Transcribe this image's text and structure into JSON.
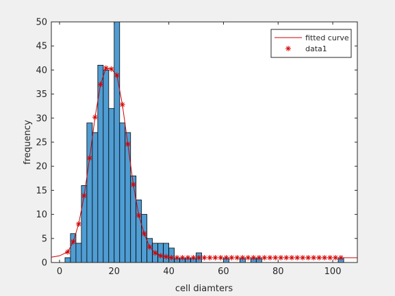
{
  "chart_data": {
    "type": "bar",
    "xlabel": "cell diamters",
    "ylabel": "frequency",
    "xlim": [
      -3,
      109
    ],
    "ylim": [
      0,
      50
    ],
    "xticks": [
      0,
      20,
      40,
      60,
      80,
      100
    ],
    "yticks": [
      0,
      5,
      10,
      15,
      20,
      25,
      30,
      35,
      40,
      45,
      50
    ],
    "grid": false,
    "legend_position": "top-right",
    "bin_width": 2,
    "histogram": {
      "bins": [
        {
          "x": 3,
          "count": 1
        },
        {
          "x": 5,
          "count": 6
        },
        {
          "x": 7,
          "count": 4
        },
        {
          "x": 9,
          "count": 16
        },
        {
          "x": 11,
          "count": 29
        },
        {
          "x": 13,
          "count": 27
        },
        {
          "x": 15,
          "count": 41
        },
        {
          "x": 17,
          "count": 40
        },
        {
          "x": 19,
          "count": 32
        },
        {
          "x": 21,
          "count": 50
        },
        {
          "x": 23,
          "count": 29
        },
        {
          "x": 25,
          "count": 27
        },
        {
          "x": 27,
          "count": 18
        },
        {
          "x": 29,
          "count": 13
        },
        {
          "x": 31,
          "count": 10
        },
        {
          "x": 33,
          "count": 5
        },
        {
          "x": 35,
          "count": 4
        },
        {
          "x": 37,
          "count": 4
        },
        {
          "x": 39,
          "count": 4
        },
        {
          "x": 41,
          "count": 3
        },
        {
          "x": 43,
          "count": 1
        },
        {
          "x": 45,
          "count": 1
        },
        {
          "x": 47,
          "count": 1
        },
        {
          "x": 49,
          "count": 1
        },
        {
          "x": 51,
          "count": 2
        },
        {
          "x": 61,
          "count": 1
        },
        {
          "x": 67,
          "count": 1
        },
        {
          "x": 71,
          "count": 1
        },
        {
          "x": 73,
          "count": 1
        },
        {
          "x": 103,
          "count": 1
        }
      ],
      "fill": "#4f9dd3",
      "edge": "#000000"
    },
    "series": [
      {
        "name": "fitted curve",
        "type": "line",
        "color": "#cc0000",
        "x": [
          -3,
          0,
          3,
          5,
          7,
          9,
          11,
          13,
          15,
          17,
          19,
          21,
          23,
          25,
          27,
          29,
          31,
          33,
          35,
          37,
          39,
          41,
          43,
          45,
          50,
          60,
          70,
          80,
          90,
          100,
          109
        ],
        "y": [
          1.1,
          1.4,
          2.2,
          4.3,
          8,
          13.9,
          21.7,
          30.2,
          37,
          40.4,
          40.2,
          38.9,
          32.8,
          24.6,
          16.2,
          9.8,
          6,
          3.2,
          2,
          1.4,
          1.2,
          1,
          1,
          1,
          1,
          1,
          1,
          1,
          1,
          1,
          1
        ]
      },
      {
        "name": "data1",
        "type": "scatter",
        "marker": "asterisk",
        "color": "#d40000",
        "x": [
          3,
          5,
          7,
          9,
          11,
          13,
          15,
          17,
          19,
          21,
          23,
          25,
          27,
          29,
          31,
          33,
          35,
          37,
          39,
          41,
          43,
          45,
          47,
          49,
          51,
          53,
          55,
          57,
          59,
          61,
          63,
          65,
          67,
          69,
          71,
          73,
          75,
          77,
          79,
          81,
          83,
          85,
          87,
          89,
          91,
          93,
          95,
          97,
          99,
          101,
          103
        ],
        "y": [
          2.2,
          4.3,
          8,
          13.9,
          21.7,
          30.2,
          37,
          40.4,
          40.2,
          38.9,
          32.8,
          24.6,
          16.2,
          9.8,
          6,
          3.2,
          2,
          1.4,
          1.2,
          1,
          1,
          1,
          1,
          1,
          1,
          1,
          1,
          1,
          1,
          1,
          1,
          1,
          1,
          1,
          1,
          1,
          1,
          1,
          1,
          1,
          1,
          1,
          1,
          1,
          1,
          1,
          1,
          1,
          1,
          1,
          1
        ]
      }
    ]
  }
}
